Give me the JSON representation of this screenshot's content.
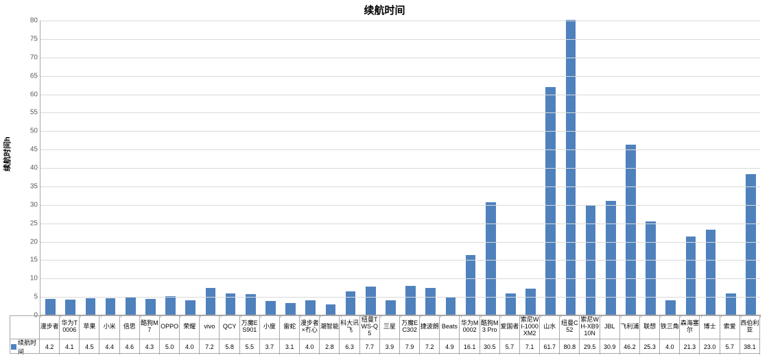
{
  "chart": {
    "type": "bar",
    "title": "续航时间",
    "title_fontsize": 15,
    "ylabel": "续航时间h",
    "ylabel_fontsize": 11,
    "ylim": [
      0,
      80
    ],
    "ytick_step": 5,
    "bar_color": "#4f81bd",
    "background_color": "#ffffff",
    "grid_color": "#d9d9d9",
    "axis_color": "#a6a6a6",
    "tick_font_color": "#595959",
    "tick_fontsize": 10,
    "category_fontsize": 9,
    "value_fontsize": 9,
    "bar_width_ratio": 0.5,
    "series_name": "续航时间",
    "categories": [
      "漫步者",
      "华为T0006",
      "苹果",
      "小米",
      "倍思",
      "酷狗M7",
      "OPPO",
      "荣耀",
      "vivo",
      "QCY",
      "万魔ES901",
      "小度",
      "雷蛇",
      "漫步者×冇心",
      "潮智能",
      "科大讯飞",
      "纽曼TWS-Q5",
      "三星",
      "万魔EC302",
      "捷波朗",
      "Beats",
      "华为M0002",
      "酷狗M3 Pro",
      "爱国者",
      "索尼WI-1000XM2",
      "山水",
      "纽曼C52",
      "索尼WH-XB910N",
      "JBL",
      "飞利浦",
      "联想",
      "铁三角",
      "森海塞尔",
      "博士",
      "索爱",
      "西伯利亚"
    ],
    "values": [
      4.2,
      4.1,
      4.5,
      4.4,
      4.6,
      4.3,
      5.0,
      4.0,
      7.2,
      5.8,
      5.5,
      3.7,
      3.1,
      4.0,
      2.8,
      6.3,
      7.7,
      3.9,
      7.9,
      7.2,
      4.9,
      16.1,
      30.5,
      5.7,
      7.1,
      61.7,
      80.8,
      29.5,
      30.9,
      46.2,
      25.3,
      4.0,
      21.3,
      23.0,
      5.7,
      38.1
    ]
  }
}
